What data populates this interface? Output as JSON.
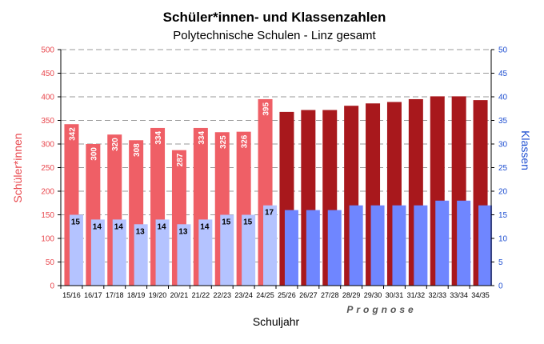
{
  "chart_data": {
    "type": "bar",
    "title": "Schüler*innen- und Klassenzahlen",
    "subtitle": "Polytechnische Schulen - Linz gesamt",
    "xlabel": "Schuljahr",
    "ylabel": "Schüler*innen",
    "y2label": "Klassen",
    "annotation": "Prognose",
    "categories": [
      "15/16",
      "16/17",
      "17/18",
      "18/19",
      "19/20",
      "20/21",
      "21/22",
      "22/23",
      "23/24",
      "24/25",
      "25/26",
      "26/27",
      "27/28",
      "28/29",
      "29/30",
      "30/31",
      "31/32",
      "32/33",
      "33/34",
      "34/35"
    ],
    "series": [
      {
        "name": "",
        "axis": "left",
        "values": [
          342,
          300,
          320,
          308,
          334,
          287,
          334,
          325,
          326,
          395,
          368,
          372,
          372,
          381,
          386,
          389,
          395,
          401,
          401,
          393
        ],
        "labels": [
          "342",
          "300",
          "320",
          "308",
          "334",
          "287",
          "334",
          "325",
          "326",
          "395",
          "",
          "",
          "",
          "",
          "",
          "",
          "",
          "",
          "",
          ""
        ]
      },
      {
        "name": "",
        "axis": "right",
        "values": [
          15,
          14,
          14,
          13,
          14,
          13,
          14,
          15,
          15,
          17,
          16,
          16,
          16,
          17,
          17,
          17,
          17,
          18,
          18,
          17
        ],
        "labels": [
          "15",
          "14",
          "14",
          "13",
          "14",
          "13",
          "14",
          "15",
          "15",
          "17",
          "",
          "",
          "",
          "",
          "",
          "",
          "",
          "",
          "",
          ""
        ]
      }
    ],
    "ylim": [
      0,
      500
    ],
    "y2lim": [
      0,
      50
    ],
    "yticks": [
      "0",
      "50",
      "100",
      "150",
      "200",
      "250",
      "300",
      "350",
      "400",
      "450",
      "500"
    ],
    "y2ticks": [
      "0",
      "5",
      "10",
      "15",
      "20",
      "25",
      "30",
      "35",
      "40",
      "45",
      "50"
    ],
    "forecast_from_index": 10,
    "grid": true,
    "colors": {
      "students_actual": "#ef5f66",
      "students_forecast": "#a8181c",
      "classes_actual": "#b4c3ff",
      "classes_forecast": "#6f86ff",
      "left_axis": "#e8474d",
      "right_axis": "#1f4fd1",
      "grid": "#9a9a9a"
    }
  }
}
